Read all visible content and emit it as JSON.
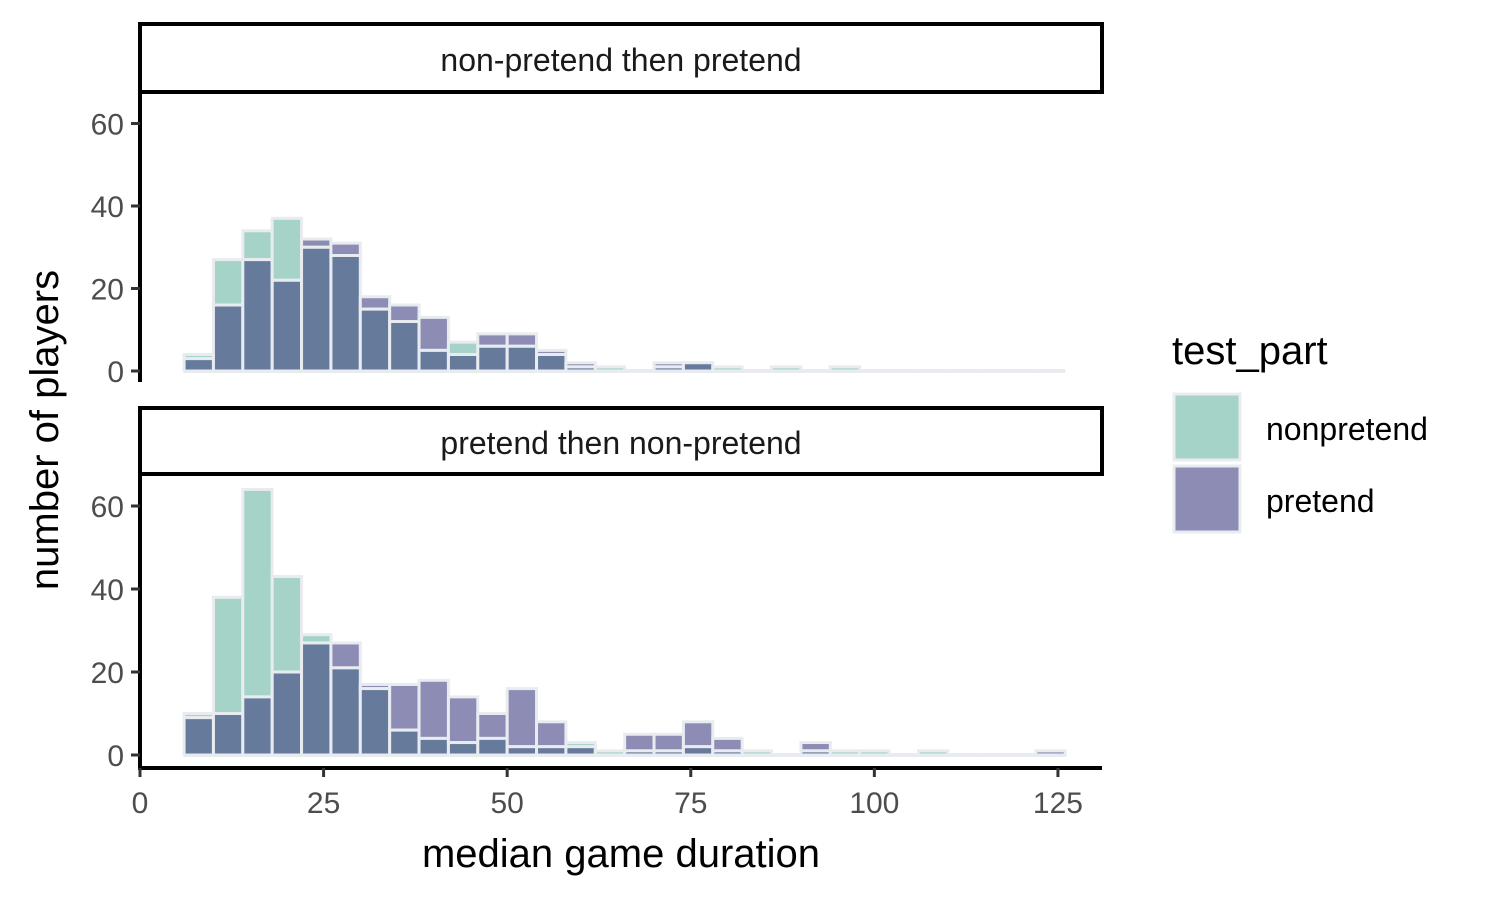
{
  "chart_data": {
    "type": "bar",
    "xlabel": "median game duration",
    "ylabel": "number of players",
    "x_range": [
      0,
      131
    ],
    "x_ticks": [
      "0",
      "25",
      "50",
      "75",
      "100",
      "125"
    ],
    "y_range": [
      0,
      66
    ],
    "y_ticks": [
      "0",
      "20",
      "40",
      "60"
    ],
    "bin_width": 4,
    "grid": false,
    "legend": {
      "title": "test_part",
      "position": "right",
      "entries": [
        {
          "label": "nonpretend",
          "color": "#a6d3c7"
        },
        {
          "label": "pretend",
          "color": "#8c8cb4"
        }
      ]
    },
    "colors": {
      "nonpretend": "#a6d3c7",
      "pretend": "#8c8cb4",
      "overlap": "#667a9c",
      "bar_outline": "#e8ecf1"
    },
    "panels": [
      {
        "title": "non-pretend then pretend",
        "x": [
          8,
          12,
          16,
          20,
          24,
          28,
          32,
          36,
          40,
          44,
          48,
          52,
          56,
          60,
          64,
          68,
          72,
          76,
          80,
          84,
          88,
          92,
          96,
          100,
          104,
          108,
          112,
          116,
          120,
          124
        ],
        "series": [
          {
            "name": "nonpretend",
            "values": [
              4,
              27,
              34,
              37,
              30,
              28,
              15,
              12,
              5,
              7,
              6,
              6,
              4,
              1,
              1,
              0,
              1,
              2,
              1,
              0,
              1,
              0,
              1,
              0,
              0,
              0,
              0,
              0,
              0,
              0
            ]
          },
          {
            "name": "pretend",
            "values": [
              3,
              16,
              27,
              22,
              32,
              31,
              18,
              16,
              13,
              4,
              9,
              9,
              5,
              2,
              0,
              0,
              2,
              2,
              0,
              0,
              0,
              0,
              0,
              0,
              0,
              0,
              0,
              0,
              0,
              0
            ]
          }
        ]
      },
      {
        "title": "pretend then non-pretend",
        "x": [
          8,
          12,
          16,
          20,
          24,
          28,
          32,
          36,
          40,
          44,
          48,
          52,
          56,
          60,
          64,
          68,
          72,
          76,
          80,
          84,
          88,
          92,
          96,
          100,
          104,
          108,
          112,
          116,
          120,
          124
        ],
        "series": [
          {
            "name": "nonpretend",
            "values": [
              10,
              38,
              64,
              43,
              29,
              21,
              16,
              6,
              4,
              3,
              4,
              2,
              2,
              3,
              1,
              1,
              1,
              2,
              1,
              1,
              0,
              1,
              1,
              1,
              0,
              1,
              0,
              0,
              0,
              0
            ]
          },
          {
            "name": "pretend",
            "values": [
              9,
              10,
              14,
              20,
              27,
              27,
              17,
              17,
              18,
              14,
              10,
              16,
              8,
              2,
              0,
              5,
              5,
              8,
              4,
              0,
              0,
              3,
              0,
              0,
              0,
              0,
              0,
              0,
              0,
              1
            ]
          }
        ]
      }
    ]
  }
}
